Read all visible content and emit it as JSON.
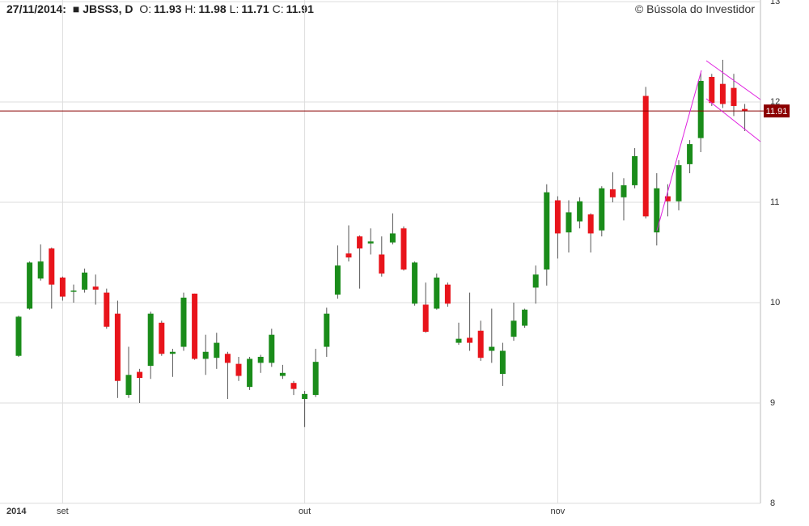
{
  "header": {
    "date": "27/11/2014:",
    "symbol": "■ JBSS3, D",
    "fields": [
      {
        "label": "O:",
        "value": 11.93
      },
      {
        "label": "H:",
        "value": 11.98
      },
      {
        "label": "L:",
        "value": 11.71
      },
      {
        "label": "C:",
        "value": 11.91
      }
    ],
    "copyright": "© Bússola do Investidor"
  },
  "chart_data": {
    "type": "candlestick",
    "categories": [
      "2014",
      null,
      null,
      null,
      "set",
      null,
      null,
      null,
      null,
      null,
      null,
      null,
      null,
      null,
      null,
      null,
      null,
      null,
      null,
      null,
      null,
      null,
      null,
      null,
      null,
      null,
      "out",
      null,
      null,
      null,
      null,
      null,
      null,
      null,
      null,
      null,
      null,
      null,
      null,
      null,
      null,
      null,
      null,
      null,
      null,
      null,
      null,
      null,
      null,
      "nov",
      null,
      null,
      null,
      null,
      null,
      null,
      null,
      null,
      null,
      null,
      null,
      null,
      null,
      null,
      null,
      null,
      null
    ],
    "open": [
      9.47,
      9.94,
      10.24,
      10.54,
      10.25,
      10.11,
      10.13,
      10.16,
      10.1,
      9.89,
      9.08,
      9.31,
      9.37,
      9.8,
      9.49,
      9.56,
      10.09,
      9.44,
      9.45,
      9.49,
      9.39,
      9.16,
      9.4,
      9.4,
      9.27,
      9.2,
      9.04,
      9.08,
      9.56,
      10.08,
      10.49,
      10.66,
      10.59,
      10.48,
      10.6,
      10.74,
      9.99,
      9.98,
      9.94,
      10.18,
      9.6,
      9.65,
      9.72,
      9.52,
      9.29,
      9.66,
      9.77,
      10.15,
      10.33,
      11.02,
      10.7,
      10.81,
      10.88,
      10.72,
      11.13,
      11.05,
      11.17,
      12.06,
      10.7,
      11.06,
      11.01,
      11.38,
      11.64,
      12.25,
      12.18,
      12.14,
      11.93
    ],
    "high": [
      9.87,
      10.41,
      10.58,
      10.55,
      10.26,
      10.18,
      10.34,
      10.28,
      10.14,
      10.02,
      9.56,
      9.34,
      9.91,
      9.82,
      9.54,
      10.1,
      10.09,
      9.68,
      9.7,
      9.51,
      9.46,
      9.46,
      9.48,
      9.74,
      9.38,
      9.22,
      9.12,
      9.54,
      9.95,
      10.57,
      10.77,
      10.67,
      10.74,
      10.66,
      10.89,
      10.76,
      10.41,
      10.2,
      10.29,
      10.2,
      9.8,
      10.1,
      9.82,
      9.94,
      9.6,
      10.0,
      9.94,
      10.37,
      11.18,
      11.06,
      11.02,
      11.05,
      10.89,
      11.16,
      11.3,
      11.24,
      11.54,
      12.15,
      11.29,
      11.18,
      11.42,
      11.62,
      12.29,
      12.28,
      12.42,
      12.28,
      11.98
    ],
    "low": [
      9.46,
      9.93,
      10.22,
      9.94,
      10.02,
      10.0,
      10.1,
      9.98,
      9.74,
      9.05,
      9.05,
      9.0,
      9.24,
      9.47,
      9.26,
      9.52,
      9.43,
      9.28,
      9.34,
      9.04,
      9.22,
      9.13,
      9.3,
      9.36,
      9.24,
      9.08,
      8.76,
      9.06,
      9.46,
      10.04,
      10.41,
      10.14,
      10.48,
      10.26,
      10.58,
      10.32,
      9.97,
      9.7,
      9.93,
      9.96,
      9.58,
      9.52,
      9.42,
      9.4,
      9.17,
      9.62,
      9.75,
      9.99,
      10.17,
      10.44,
      10.5,
      10.74,
      10.5,
      10.66,
      11.0,
      10.82,
      11.14,
      10.84,
      10.57,
      10.86,
      10.92,
      11.29,
      11.5,
      11.96,
      11.94,
      11.86,
      11.71
    ],
    "close": [
      9.86,
      10.4,
      10.41,
      10.18,
      10.06,
      10.12,
      10.3,
      10.13,
      9.76,
      9.22,
      9.28,
      9.25,
      9.89,
      9.49,
      9.51,
      10.05,
      9.44,
      9.51,
      9.6,
      9.4,
      9.27,
      9.44,
      9.46,
      9.68,
      9.3,
      9.14,
      9.09,
      9.41,
      9.89,
      10.37,
      10.45,
      10.54,
      10.61,
      10.29,
      10.69,
      10.33,
      10.4,
      9.71,
      10.25,
      9.99,
      9.64,
      9.6,
      9.45,
      9.56,
      9.52,
      9.82,
      9.93,
      10.28,
      11.1,
      10.69,
      10.9,
      11.01,
      10.69,
      11.14,
      11.05,
      11.17,
      11.46,
      10.86,
      11.14,
      11.01,
      11.37,
      11.58,
      12.21,
      11.99,
      11.98,
      11.96,
      11.91
    ],
    "up_color": "#1a8c1a",
    "down_color": "#e8141b",
    "price_line_color": "#8b0000",
    "ylim": [
      8,
      13
    ],
    "yticks": [
      8,
      9,
      10,
      11,
      12,
      13
    ],
    "grid": true
  }
}
